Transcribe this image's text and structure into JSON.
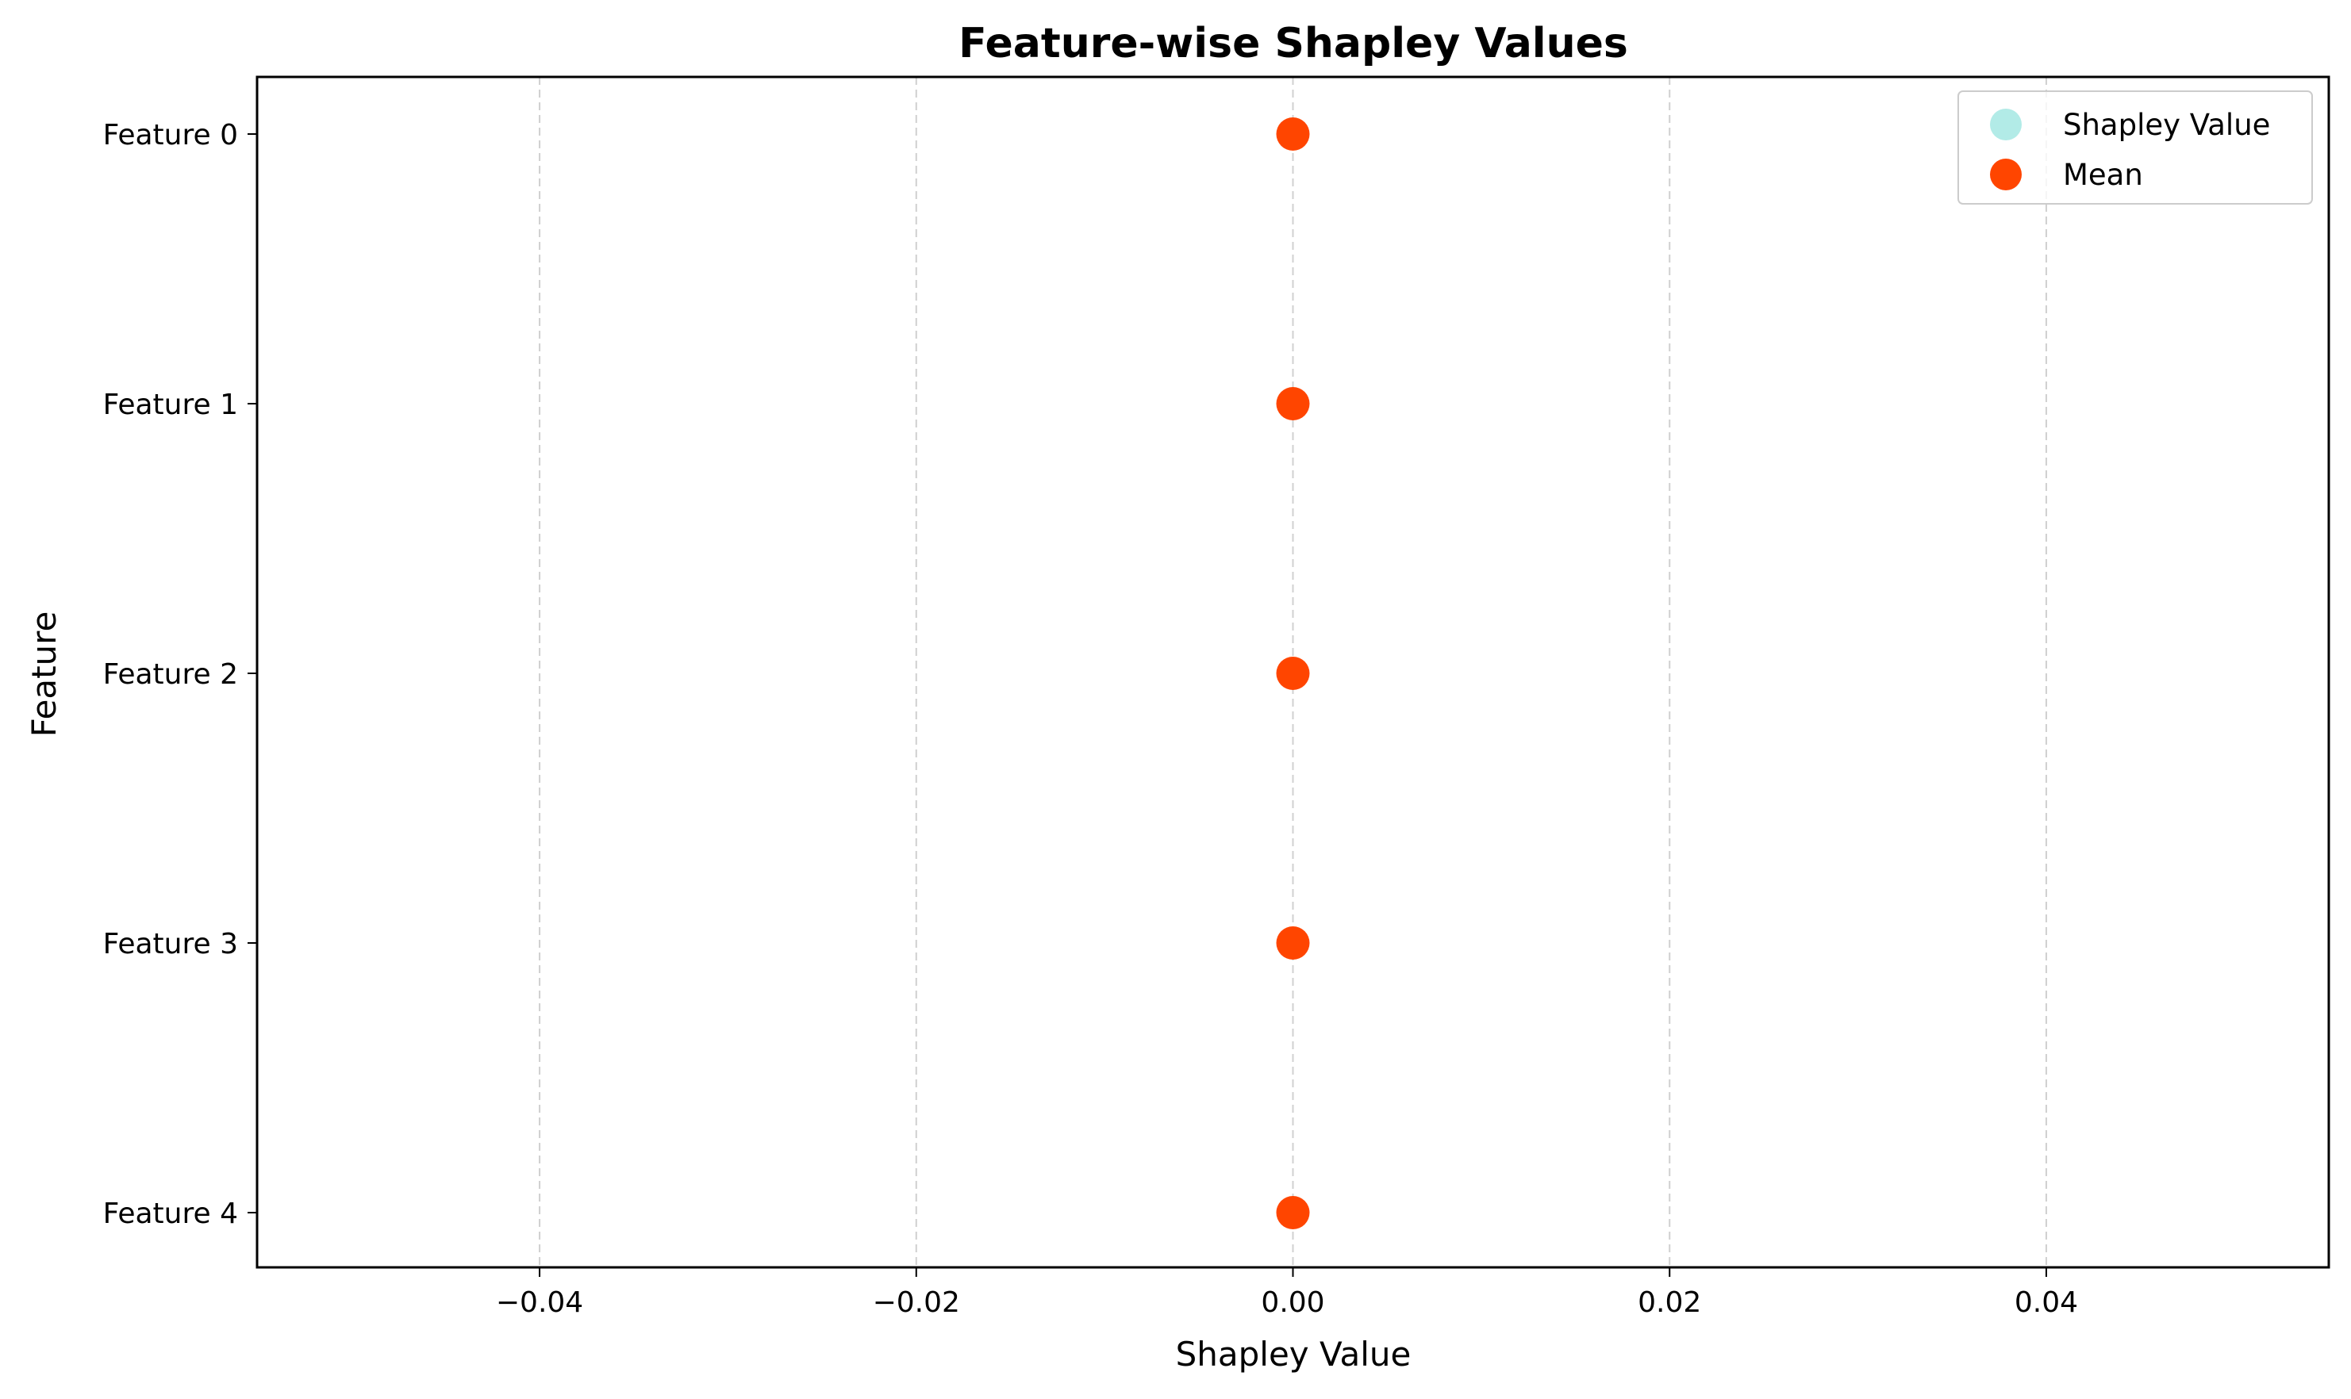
{
  "chart_data": {
    "type": "scatter",
    "title": "Feature-wise Shapley Values",
    "xlabel": "Shapley Value",
    "ylabel": "Feature",
    "xlim": [
      -0.055,
      0.055
    ],
    "xticks": [
      -0.04,
      -0.02,
      0.0,
      0.02,
      0.04
    ],
    "xtick_labels": [
      "−0.04",
      "−0.02",
      "0.00",
      "0.02",
      "0.04"
    ],
    "categories": [
      "Feature 0",
      "Feature 1",
      "Feature 2",
      "Feature 3",
      "Feature 4"
    ],
    "grid": {
      "x": true,
      "y": false,
      "style": "dashed"
    },
    "legend_position": "top-right",
    "series": [
      {
        "name": "Shapley Value",
        "color": "#b2ebe7",
        "points": [
          {
            "category": "Feature 0",
            "x": 0.0
          },
          {
            "category": "Feature 1",
            "x": 0.0
          },
          {
            "category": "Feature 2",
            "x": 0.0
          },
          {
            "category": "Feature 3",
            "x": 0.0
          },
          {
            "category": "Feature 4",
            "x": 0.0
          }
        ]
      },
      {
        "name": "Mean",
        "color": "#ff4500",
        "points": [
          {
            "category": "Feature 0",
            "x": 0.0
          },
          {
            "category": "Feature 1",
            "x": 0.0
          },
          {
            "category": "Feature 2",
            "x": 0.0
          },
          {
            "category": "Feature 3",
            "x": 0.0
          },
          {
            "category": "Feature 4",
            "x": 0.0
          }
        ]
      }
    ]
  }
}
